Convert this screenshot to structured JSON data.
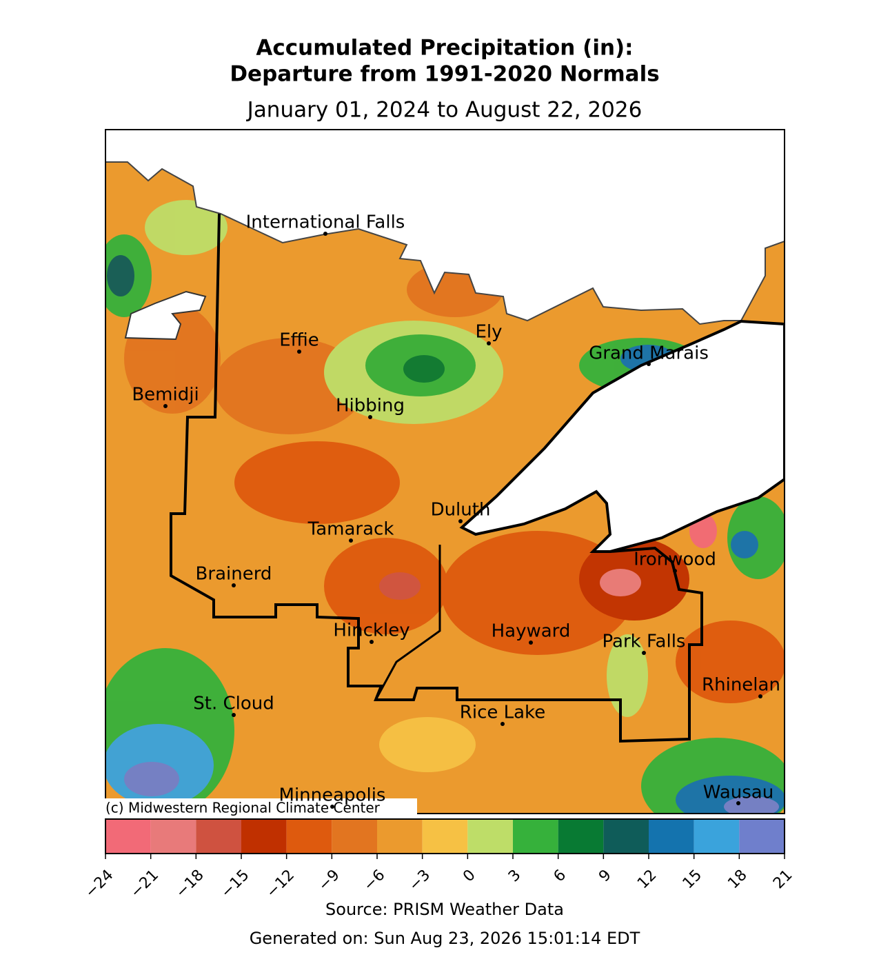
{
  "title": [
    "Accumulated Precipitation (in):",
    "Departure from 1991-2020 Normals"
  ],
  "subtitle": "January 01, 2024 to August 22, 2026",
  "cities": [
    "International Falls",
    "Effie",
    "Ely",
    "Grand Marais",
    "Bemidji",
    "Hibbing",
    "Duluth",
    "Tamarack",
    "Brainerd",
    "Ironwood",
    "Hinckley",
    "Hayward",
    "Park Falls",
    "Rhinelan",
    "St. Cloud",
    "Rice Lake",
    "Minneapolis",
    "Wausau"
  ],
  "credit": "(c) Midwestern Regional Climate Center",
  "colorbar": {
    "colors": [
      "#f26a77",
      "#e87a7a",
      "#cf5240",
      "#c03000",
      "#de5a0e",
      "#e27520",
      "#eb9a2e",
      "#f6c144",
      "#bedd68",
      "#36b13b",
      "#087a33",
      "#0f5c59",
      "#1473ae",
      "#3aa3dc",
      "#6f7fcc"
    ],
    "ticks": [
      {
        "value": -24,
        "label": "−24"
      },
      {
        "value": -21,
        "label": "−21"
      },
      {
        "value": -18,
        "label": "−18"
      },
      {
        "value": -15,
        "label": "−15"
      },
      {
        "value": -12,
        "label": "−12"
      },
      {
        "value": -9,
        "label": "−9"
      },
      {
        "value": -6,
        "label": "−6"
      },
      {
        "value": -3,
        "label": "−3"
      },
      0,
      3,
      6,
      9,
      12,
      15,
      18,
      21
    ]
  },
  "source": "Source: PRISM Weather Data",
  "generated": "Generated on: Sun Aug 23, 2026 15:01:14 EDT"
}
